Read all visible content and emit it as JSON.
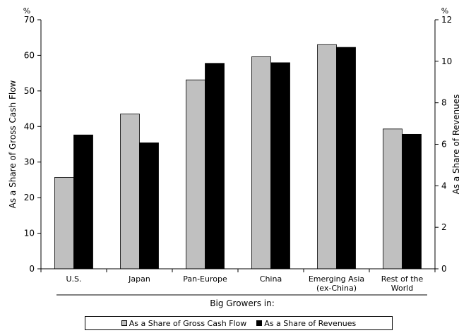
{
  "chart_data": {
    "type": "bar",
    "categories": [
      "U.S.",
      "Japan",
      "Pan-Europe",
      "China",
      "Emerging Asia (ex-China)",
      "Rest of the World"
    ],
    "category_lines": [
      [
        "U.S."
      ],
      [
        "Japan"
      ],
      [
        "Pan-Europe"
      ],
      [
        "China"
      ],
      [
        "Emerging Asia",
        "(ex-China)"
      ],
      [
        "Rest of the",
        "World"
      ]
    ],
    "group_label": "Big Growers in:",
    "series": [
      {
        "name": "As a Share of Gross Cash Flow",
        "axis": "left",
        "color": "#c0c0c0",
        "values": [
          25.7,
          43.5,
          53.1,
          59.6,
          63.0,
          39.3
        ]
      },
      {
        "name": "As a Share of Revenues",
        "axis": "right",
        "color": "#000000",
        "values": [
          6.45,
          6.07,
          9.9,
          9.93,
          10.67,
          6.48
        ]
      }
    ],
    "y_left": {
      "label": "As a Share of Gross Cash Flow",
      "unit": "%",
      "lim": [
        0,
        70
      ],
      "ticks": [
        "0",
        "10",
        "20",
        "30",
        "40",
        "50",
        "60",
        "70"
      ]
    },
    "y_right": {
      "label": "As a Share of Revenues",
      "unit": "%",
      "lim": [
        0,
        12
      ],
      "ticks": [
        "0",
        "2",
        "4",
        "6",
        "8",
        "10",
        "12"
      ]
    },
    "grid": false,
    "legend_position": "bottom"
  }
}
